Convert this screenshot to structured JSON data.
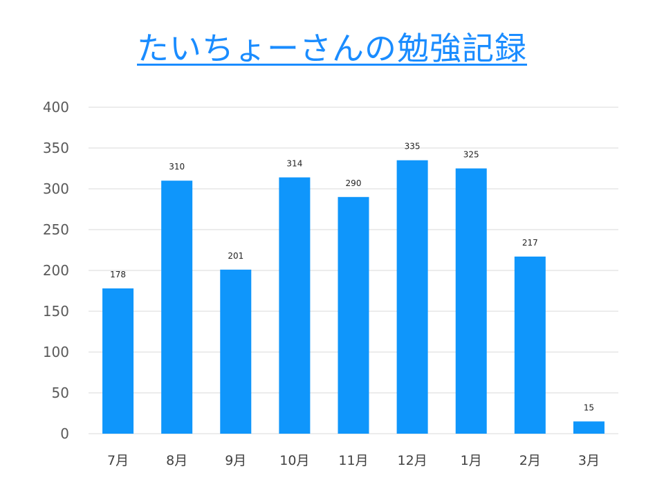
{
  "title": "たいちょーさんの勉強記録",
  "colors": {
    "bar": "#0f96fb",
    "title": "#1a8cff",
    "grid": "#d9d9d9"
  },
  "chart_data": {
    "type": "bar",
    "title": "たいちょーさんの勉強記録",
    "categories": [
      "7月",
      "8月",
      "9月",
      "10月",
      "11月",
      "12月",
      "1月",
      "2月",
      "3月"
    ],
    "values": [
      178,
      310,
      201,
      314,
      290,
      335,
      325,
      217,
      15
    ],
    "data_labels": [
      "178",
      "310",
      "201",
      "314",
      "290",
      "335",
      "325",
      "217",
      "15"
    ],
    "xlabel": "",
    "ylabel": "",
    "ylim": [
      0,
      400
    ],
    "yticks": [
      0,
      50,
      100,
      150,
      200,
      250,
      300,
      350,
      400
    ],
    "ytick_labels": [
      "0",
      "50",
      "100",
      "150",
      "200",
      "250",
      "300",
      "350",
      "400"
    ],
    "grid": true,
    "legend": false
  }
}
